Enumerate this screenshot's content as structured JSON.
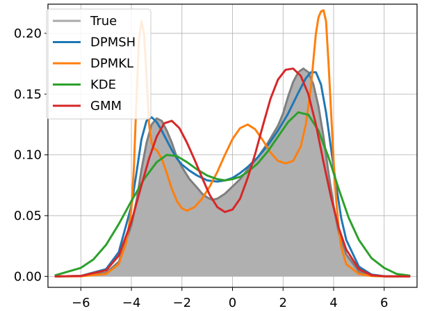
{
  "chart_data": {
    "type": "line",
    "xlim": [
      -7.3,
      7.3
    ],
    "ylim": [
      -0.009,
      0.224
    ],
    "xticks": [
      -6,
      -4,
      -2,
      0,
      2,
      4,
      6
    ],
    "xtick_labels": [
      "−6",
      "−4",
      "−2",
      "0",
      "2",
      "4",
      "6"
    ],
    "yticks": [
      0.0,
      0.05,
      0.1,
      0.15,
      0.2
    ],
    "ytick_labels": [
      "0.00",
      "0.05",
      "0.10",
      "0.15",
      "0.20"
    ],
    "grid": true,
    "legend_position": "top-left",
    "series": [
      {
        "name": "True",
        "color": "#aaaaaa",
        "filled": true,
        "fill_color": "#b0b0b0",
        "edge_color": "#7f7f7f",
        "x": [
          -7.0,
          -6.0,
          -5.0,
          -4.5,
          -4.0,
          -3.8,
          -3.6,
          -3.4,
          -3.2,
          -3.0,
          -2.8,
          -2.6,
          -2.4,
          -2.2,
          -2.0,
          -1.7,
          -1.4,
          -1.2,
          -1.0,
          -0.8,
          -0.6,
          -0.3,
          0.0,
          0.3,
          0.6,
          1.0,
          1.4,
          1.8,
          2.0,
          2.2,
          2.4,
          2.6,
          2.8,
          3.0,
          3.2,
          3.4,
          3.6,
          3.8,
          4.0,
          4.2,
          4.5,
          5.0,
          5.5,
          6.0,
          7.0
        ],
        "y": [
          0.0,
          0.0002,
          0.003,
          0.012,
          0.042,
          0.062,
          0.088,
          0.11,
          0.125,
          0.13,
          0.128,
          0.12,
          0.11,
          0.098,
          0.09,
          0.08,
          0.073,
          0.068,
          0.065,
          0.063,
          0.064,
          0.068,
          0.074,
          0.08,
          0.088,
          0.098,
          0.11,
          0.124,
          0.134,
          0.148,
          0.16,
          0.168,
          0.171,
          0.168,
          0.158,
          0.14,
          0.115,
          0.085,
          0.058,
          0.036,
          0.018,
          0.004,
          0.0008,
          0.0001,
          0.0
        ]
      },
      {
        "name": "DPMSH",
        "color": "#1f77b4",
        "x": [
          -7.0,
          -6.0,
          -5.0,
          -4.5,
          -4.0,
          -3.8,
          -3.6,
          -3.4,
          -3.2,
          -3.0,
          -2.8,
          -2.6,
          -2.4,
          -2.2,
          -2.0,
          -1.7,
          -1.4,
          -1.0,
          -0.6,
          -0.3,
          0.0,
          0.3,
          0.6,
          1.0,
          1.4,
          1.8,
          2.2,
          2.6,
          2.9,
          3.1,
          3.3,
          3.5,
          3.7,
          3.9,
          4.1,
          4.3,
          4.5,
          5.0,
          5.5,
          6.0,
          7.0
        ],
        "y": [
          0.0,
          0.0004,
          0.006,
          0.02,
          0.058,
          0.085,
          0.113,
          0.128,
          0.131,
          0.127,
          0.12,
          0.112,
          0.104,
          0.097,
          0.092,
          0.087,
          0.083,
          0.079,
          0.078,
          0.079,
          0.081,
          0.085,
          0.09,
          0.098,
          0.108,
          0.12,
          0.134,
          0.151,
          0.163,
          0.168,
          0.168,
          0.158,
          0.135,
          0.105,
          0.075,
          0.048,
          0.03,
          0.008,
          0.0015,
          0.0002,
          0.0
        ]
      },
      {
        "name": "DPMKL",
        "color": "#ff7f0e",
        "x": [
          -7.0,
          -6.0,
          -5.0,
          -4.5,
          -4.2,
          -4.0,
          -3.9,
          -3.8,
          -3.7,
          -3.6,
          -3.5,
          -3.4,
          -3.3,
          -3.2,
          -3.1,
          -3.0,
          -2.8,
          -2.6,
          -2.4,
          -2.2,
          -2.0,
          -1.8,
          -1.5,
          -1.2,
          -0.9,
          -0.6,
          -0.3,
          0.0,
          0.3,
          0.6,
          0.9,
          1.2,
          1.5,
          1.8,
          2.1,
          2.4,
          2.7,
          2.9,
          3.1,
          3.2,
          3.3,
          3.4,
          3.5,
          3.6,
          3.7,
          3.8,
          3.9,
          4.0,
          4.1,
          4.2,
          4.3,
          4.5,
          5.0,
          5.5,
          6.0,
          7.0
        ],
        "y": [
          0.0,
          0.0001,
          0.002,
          0.01,
          0.028,
          0.055,
          0.09,
          0.145,
          0.195,
          0.21,
          0.2,
          0.165,
          0.125,
          0.11,
          0.105,
          0.104,
          0.097,
          0.085,
          0.072,
          0.062,
          0.056,
          0.054,
          0.057,
          0.064,
          0.074,
          0.086,
          0.1,
          0.113,
          0.122,
          0.125,
          0.121,
          0.112,
          0.102,
          0.095,
          0.093,
          0.095,
          0.107,
          0.125,
          0.155,
          0.178,
          0.2,
          0.213,
          0.218,
          0.219,
          0.21,
          0.175,
          0.135,
          0.095,
          0.063,
          0.04,
          0.024,
          0.01,
          0.002,
          0.0003,
          0.0,
          0.0
        ]
      },
      {
        "name": "KDE",
        "color": "#2ca02c",
        "x": [
          -7.0,
          -6.0,
          -5.5,
          -5.0,
          -4.5,
          -4.0,
          -3.5,
          -3.0,
          -2.6,
          -2.2,
          -1.8,
          -1.4,
          -1.0,
          -0.6,
          -0.3,
          0.0,
          0.3,
          0.6,
          1.0,
          1.4,
          1.8,
          2.2,
          2.6,
          3.0,
          3.4,
          3.8,
          4.2,
          4.6,
          5.0,
          5.5,
          6.0,
          6.5,
          7.0
        ],
        "y": [
          0.001,
          0.007,
          0.014,
          0.026,
          0.043,
          0.062,
          0.08,
          0.094,
          0.1,
          0.099,
          0.094,
          0.088,
          0.083,
          0.08,
          0.079,
          0.08,
          0.082,
          0.086,
          0.093,
          0.103,
          0.115,
          0.127,
          0.135,
          0.133,
          0.12,
          0.098,
          0.072,
          0.048,
          0.03,
          0.015,
          0.007,
          0.002,
          0.0007
        ]
      },
      {
        "name": "GMM",
        "color": "#d62728",
        "x": [
          -7.0,
          -6.0,
          -5.0,
          -4.5,
          -4.0,
          -3.6,
          -3.3,
          -3.0,
          -2.7,
          -2.4,
          -2.1,
          -1.8,
          -1.5,
          -1.2,
          -0.9,
          -0.6,
          -0.3,
          0.0,
          0.3,
          0.6,
          0.9,
          1.2,
          1.5,
          1.8,
          2.1,
          2.4,
          2.7,
          3.0,
          3.3,
          3.6,
          3.9,
          4.2,
          4.5,
          5.0,
          5.5,
          6.0,
          7.0
        ],
        "y": [
          0.0,
          0.0004,
          0.005,
          0.017,
          0.045,
          0.075,
          0.097,
          0.115,
          0.126,
          0.128,
          0.122,
          0.11,
          0.096,
          0.081,
          0.067,
          0.057,
          0.053,
          0.055,
          0.064,
          0.081,
          0.101,
          0.124,
          0.146,
          0.162,
          0.17,
          0.171,
          0.165,
          0.15,
          0.125,
          0.094,
          0.065,
          0.04,
          0.022,
          0.006,
          0.001,
          0.0001,
          0.0
        ]
      }
    ]
  }
}
